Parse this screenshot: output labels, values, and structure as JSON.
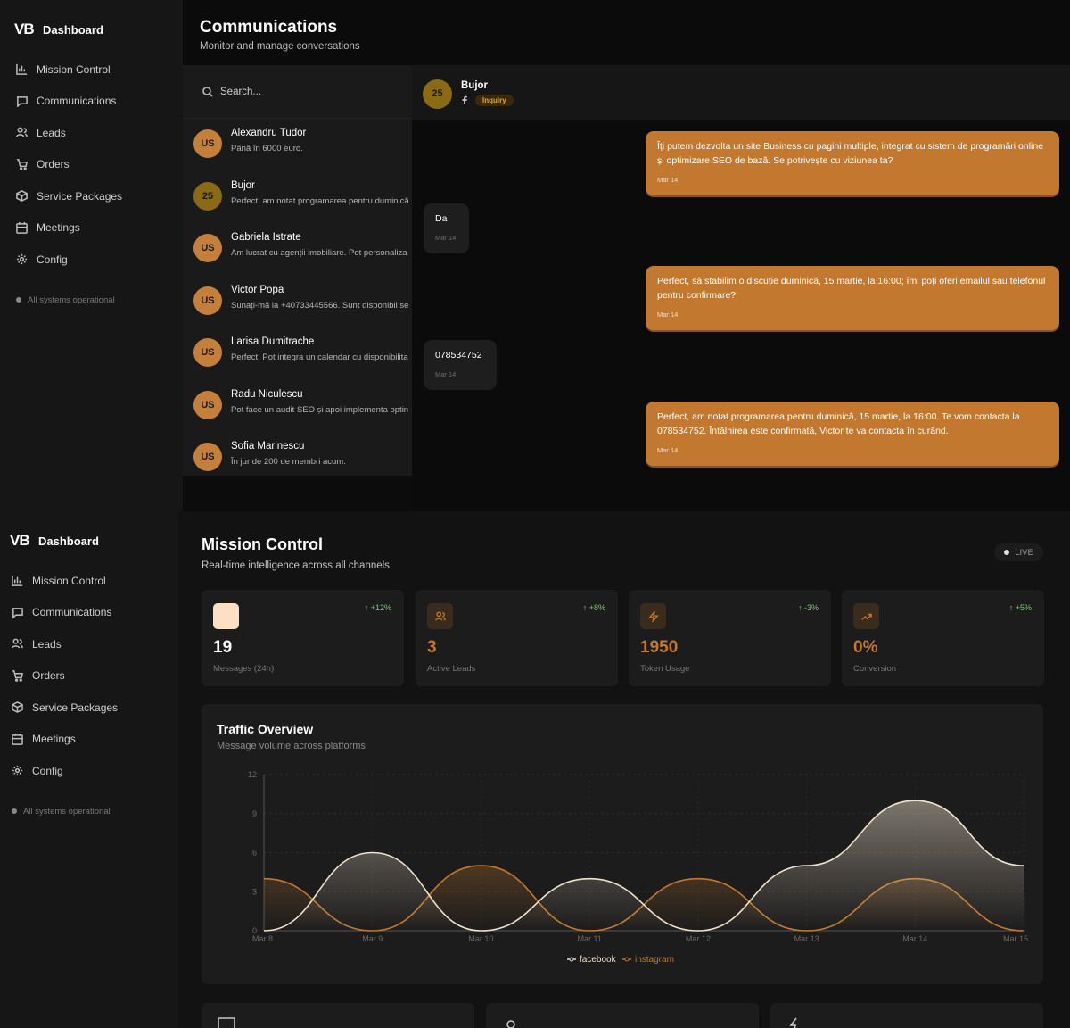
{
  "sidebar": {
    "logo": "VB",
    "brand": "Dashboard",
    "items": [
      {
        "label": "Mission Control",
        "icon": "bar-chart-icon"
      },
      {
        "label": "Communications",
        "icon": "message-square-icon"
      },
      {
        "label": "Leads",
        "icon": "users-icon"
      },
      {
        "label": "Orders",
        "icon": "shopping-cart-icon"
      },
      {
        "label": "Service Packages",
        "icon": "package-icon"
      },
      {
        "label": "Meetings",
        "icon": "calendar-icon"
      },
      {
        "label": "Config",
        "icon": "gear-icon"
      }
    ],
    "status": "All systems operational"
  },
  "communications": {
    "title": "Communications",
    "subtitle": "Monitor and manage conversations",
    "search_placeholder": "Search...",
    "conversations": [
      {
        "initials": "US",
        "name": "Alexandru Tudor",
        "preview": "Până în 6000 euro."
      },
      {
        "initials": "25",
        "name": "Bujor",
        "preview": "Perfect, am notat programarea pentru duminică"
      },
      {
        "initials": "US",
        "name": "Gabriela Istrate",
        "preview": "Am lucrat cu agenții imobiliare. Pot personaliza"
      },
      {
        "initials": "US",
        "name": "Victor Popa",
        "preview": "Sunați-mă la +40733445566. Sunt disponibil se"
      },
      {
        "initials": "US",
        "name": "Larisa Dumitrache",
        "preview": "Perfect! Pot integra un calendar cu disponibilita"
      },
      {
        "initials": "US",
        "name": "Radu Niculescu",
        "preview": "Pot face un audit SEO și apoi implementa optin"
      },
      {
        "initials": "US",
        "name": "Sofia Marinescu",
        "preview": "În jur de 200 de membri acum."
      }
    ],
    "active": {
      "initials": "25",
      "name": "Bujor",
      "tag": "Inquiry"
    },
    "messages": [
      {
        "dir": "out",
        "text": "Îți putem dezvolta un site Business cu pagini multiple, integrat cu sistem de programări online și optimizare SEO de bază. Se potrivește cu viziunea ta?",
        "time": "Mar 14"
      },
      {
        "dir": "in",
        "text": "Da",
        "time": "Mar 14"
      },
      {
        "dir": "out",
        "text": "Perfect, să stabilim o discuție duminică, 15 martie, la 16:00; îmi poți oferi emailul sau telefonul pentru confirmare?",
        "time": "Mar 14"
      },
      {
        "dir": "in",
        "text": "078534752",
        "time": "Mar 14"
      },
      {
        "dir": "out",
        "text": "Perfect, am notat programarea pentru duminică, 15 martie, la 16:00. Te vom contacta la 078534752. Întâlnirea este confirmată, Victor te va contacta în curând.",
        "time": "Mar 14"
      }
    ]
  },
  "mission": {
    "title": "Mission Control",
    "subtitle": "Real-time intelligence across all channels",
    "live": "LIVE",
    "stats": [
      {
        "value": "19",
        "label": "Messages (24h)",
        "change": "↑ +12%",
        "icon": "message-icon"
      },
      {
        "value": "3",
        "label": "Active Leads",
        "change": "↑ +8%",
        "icon": "users-icon"
      },
      {
        "value": "1950",
        "label": "Token Usage",
        "change": "↑ -3%",
        "icon": "zap-icon"
      },
      {
        "value": "0%",
        "label": "Conversion",
        "change": "↑ +5%",
        "icon": "trending-up-icon"
      }
    ],
    "traffic_title": "Traffic Overview",
    "traffic_subtitle": "Message volume across platforms"
  },
  "chart_data": {
    "type": "area",
    "categories": [
      "Mar 8",
      "Mar 9",
      "Mar 10",
      "Mar 11",
      "Mar 12",
      "Mar 13",
      "Mar 14",
      "Mar 15"
    ],
    "yticks": [
      0,
      3,
      6,
      9,
      12
    ],
    "ylim": [
      0,
      12
    ],
    "series": [
      {
        "name": "facebook",
        "values": [
          0,
          6,
          0,
          4,
          0,
          5,
          10,
          5
        ],
        "color": "#f0e2cc"
      },
      {
        "name": "instagram",
        "values": [
          4,
          0,
          5,
          0,
          4,
          0,
          4,
          0
        ],
        "color": "#c2782f"
      }
    ],
    "legend": "bottom",
    "grid": true
  }
}
